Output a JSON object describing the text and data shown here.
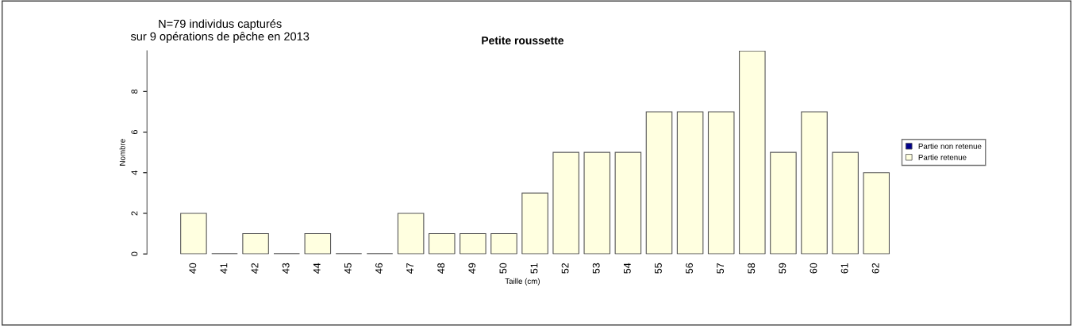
{
  "chart_data": {
    "type": "bar",
    "title": "Petite roussette",
    "xlabel": "Taille (cm)",
    "ylabel": "Nombre",
    "annotations": [
      "N=79 individus capturés\nsur 9 opérations de pêche en 2013"
    ],
    "categories": [
      "40",
      "41",
      "42",
      "43",
      "44",
      "45",
      "46",
      "47",
      "48",
      "49",
      "50",
      "51",
      "52",
      "53",
      "54",
      "55",
      "56",
      "57",
      "58",
      "59",
      "60",
      "61",
      "62"
    ],
    "stacked": true,
    "series": [
      {
        "name": "Partie non retenue",
        "color": "#00008b",
        "values": [
          0,
          0,
          0,
          0,
          0,
          0,
          0,
          0,
          0,
          0,
          0,
          0,
          0,
          0,
          0,
          0,
          0,
          0,
          0,
          0,
          0,
          0,
          0
        ]
      },
      {
        "name": "Partie retenue",
        "color": "#ffffe0",
        "values": [
          2,
          0,
          1,
          0,
          1,
          0,
          0,
          2,
          1,
          1,
          1,
          3,
          5,
          5,
          5,
          7,
          7,
          7,
          10,
          5,
          7,
          5,
          4
        ]
      }
    ],
    "ylim": [
      0,
      10
    ],
    "yticks": [
      0,
      2,
      4,
      6,
      8
    ],
    "grid": false,
    "legend": "right"
  }
}
